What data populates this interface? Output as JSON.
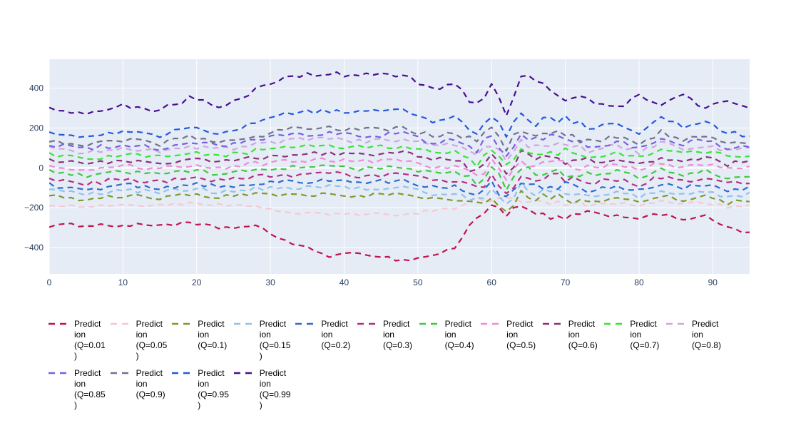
{
  "page": {
    "background": "#ffffff"
  },
  "plot": {
    "bg_color": "#e5ecf6",
    "grid_color": "#ffffff",
    "tick_color": "#2a3f5f",
    "legend_text_color": "#000000",
    "zeroline_width": 2
  },
  "axes": {
    "x_ticks": [
      0,
      10,
      20,
      30,
      40,
      50,
      60,
      70,
      80,
      90
    ],
    "x_tick_labels": [
      "0",
      "10",
      "20",
      "30",
      "40",
      "50",
      "60",
      "70",
      "80",
      "90"
    ],
    "y_ticks": [
      400,
      200,
      0,
      -200,
      -400
    ],
    "y_tick_labels": [
      "400",
      "200",
      "0",
      "−200",
      "−400"
    ],
    "x_range": [
      0,
      95
    ],
    "y_range": [
      -532,
      545
    ],
    "grid": "on",
    "legend_position": "bottom"
  },
  "chart_data": {
    "type": "line",
    "line_style": "dashed",
    "x_anchors": [
      0,
      5,
      10,
      15,
      19,
      23,
      28,
      33,
      38,
      43,
      48,
      52,
      55,
      58,
      60,
      62,
      64,
      66,
      68,
      71,
      74,
      77,
      80,
      83,
      86,
      89,
      92,
      95
    ],
    "volatile_zone": {
      "x_start": 57,
      "x_end": 73,
      "jitter_factor": 2.0
    },
    "series": [
      {
        "name": "Prediction (Q=0.01)",
        "q": 0.01,
        "color": "#c2134e",
        "jitter": 9,
        "legend_lines": [
          "Predict",
          "ion",
          "(Q=0.01",
          ")"
        ],
        "values": [
          -290,
          -285,
          -290,
          -285,
          -280,
          -300,
          -295,
          -380,
          -440,
          -430,
          -465,
          -440,
          -400,
          -250,
          -180,
          -230,
          -200,
          -230,
          -260,
          -240,
          -230,
          -240,
          -250,
          -235,
          -255,
          -245,
          -300,
          -330
        ]
      },
      {
        "name": "Prediction (Q=0.05)",
        "q": 0.05,
        "color": "#f8c7d2",
        "jitter": 7,
        "legend_lines": [
          "Predict",
          "ion",
          "(Q=0.05",
          ")"
        ],
        "values": [
          -185,
          -195,
          -185,
          -190,
          -180,
          -185,
          -195,
          -225,
          -235,
          -230,
          -235,
          -215,
          -200,
          -160,
          -175,
          -150,
          -165,
          -175,
          -170,
          -180,
          -185,
          -175,
          -190,
          -170,
          -180,
          -175,
          -195,
          -185
        ]
      },
      {
        "name": "Prediction (Q=0.1)",
        "q": 0.1,
        "color": "#7d9b2c",
        "jitter": 11,
        "legend_lines": [
          "Predict",
          "ion",
          "(Q=0.1)"
        ],
        "values": [
          -140,
          -160,
          -140,
          -150,
          -135,
          -145,
          -135,
          -135,
          -130,
          -140,
          -130,
          -160,
          -155,
          -190,
          -135,
          -210,
          -125,
          -155,
          -140,
          -160,
          -165,
          -150,
          -175,
          -140,
          -160,
          -145,
          -175,
          -160
        ]
      },
      {
        "name": "Prediction (Q=0.15)",
        "q": 0.15,
        "color": "#8fc2ec",
        "jitter": 11,
        "legend_lines": [
          "Predict",
          "ion",
          "(Q=0.15",
          ")"
        ],
        "values": [
          -110,
          -135,
          -110,
          -125,
          -105,
          -120,
          -105,
          -100,
          -95,
          -105,
          -95,
          -130,
          -125,
          -165,
          -105,
          -185,
          -95,
          -125,
          -110,
          -130,
          -135,
          -120,
          -145,
          -110,
          -130,
          -115,
          -145,
          -130
        ]
      },
      {
        "name": "Prediction (Q=0.2)",
        "q": 0.2,
        "color": "#2e6ad2",
        "jitter": 12,
        "legend_lines": [
          "Predict",
          "ion",
          "(Q=0.2)"
        ],
        "values": [
          -85,
          -110,
          -85,
          -100,
          -80,
          -95,
          -75,
          -70,
          -65,
          -75,
          -65,
          -100,
          -95,
          -140,
          -75,
          -160,
          -65,
          -95,
          -80,
          -100,
          -105,
          -90,
          -115,
          -80,
          -100,
          -85,
          -115,
          -100
        ]
      },
      {
        "name": "Prediction (Q=0.3)",
        "q": 0.3,
        "color": "#b52e80",
        "jitter": 12,
        "legend_lines": [
          "Predict",
          "ion",
          "(Q=0.3)"
        ],
        "values": [
          -55,
          -80,
          -55,
          -70,
          -50,
          -65,
          -45,
          -35,
          -30,
          -40,
          -30,
          -65,
          -60,
          -110,
          -40,
          -130,
          -30,
          -60,
          -45,
          -65,
          -70,
          -55,
          -85,
          -45,
          -65,
          -50,
          -80,
          -70
        ]
      },
      {
        "name": "Prediction (Q=0.4)",
        "q": 0.4,
        "color": "#3fc93f",
        "jitter": 12,
        "legend_lines": [
          "Predict",
          "ion",
          "(Q=0.4)"
        ],
        "values": [
          -20,
          -45,
          -20,
          -35,
          -15,
          -30,
          -10,
          0,
          5,
          -5,
          5,
          -30,
          -25,
          -75,
          -5,
          -95,
          5,
          -25,
          -10,
          -30,
          -35,
          -20,
          -50,
          -10,
          -30,
          -15,
          -45,
          -35
        ]
      },
      {
        "name": "Prediction (Q=0.5)",
        "q": 0.5,
        "color": "#f18ad8",
        "jitter": 12,
        "legend_lines": [
          "Predict",
          "ion",
          "(Q=0.5)"
        ],
        "values": [
          10,
          -15,
          10,
          -5,
          15,
          0,
          20,
          35,
          40,
          30,
          40,
          5,
          10,
          -45,
          30,
          -65,
          40,
          10,
          25,
          5,
          0,
          15,
          -15,
          25,
          5,
          20,
          -10,
          0
        ]
      },
      {
        "name": "Prediction (Q=0.6)",
        "q": 0.6,
        "color": "#8c3177",
        "jitter": 12,
        "legend_lines": [
          "Predict",
          "ion",
          "(Q=0.6)"
        ],
        "values": [
          40,
          15,
          40,
          25,
          45,
          30,
          50,
          70,
          75,
          65,
          75,
          40,
          45,
          -15,
          60,
          -35,
          70,
          40,
          55,
          35,
          30,
          45,
          15,
          55,
          35,
          50,
          20,
          30
        ]
      },
      {
        "name": "Prediction (Q=0.7)",
        "q": 0.7,
        "color": "#37e437",
        "jitter": 12,
        "legend_lines": [
          "Predict",
          "ion",
          "(Q=0.7)"
        ],
        "values": [
          70,
          45,
          70,
          55,
          80,
          60,
          85,
          105,
          110,
          100,
          110,
          75,
          80,
          20,
          100,
          0,
          110,
          75,
          90,
          70,
          60,
          80,
          50,
          90,
          70,
          85,
          55,
          60
        ]
      },
      {
        "name": "Prediction (Q=0.8)",
        "q": 0.8,
        "color": "#cfa6de",
        "jitter": 12,
        "legend_lines": [
          "Predict",
          "ion",
          "(Q=0.8)"
        ],
        "values": [
          100,
          75,
          100,
          85,
          110,
          90,
          115,
          140,
          145,
          135,
          145,
          110,
          115,
          60,
          130,
          40,
          140,
          110,
          120,
          100,
          90,
          110,
          80,
          120,
          100,
          115,
          85,
          90
        ]
      },
      {
        "name": "Prediction (Q=0.85)",
        "q": 0.85,
        "color": "#7b5ee2",
        "jitter": 12,
        "legend_lines": [
          "Predict",
          "ion",
          "(Q=0.85",
          ")"
        ],
        "values": [
          120,
          95,
          120,
          100,
          130,
          110,
          140,
          165,
          170,
          160,
          170,
          130,
          140,
          90,
          160,
          70,
          170,
          130,
          150,
          120,
          110,
          130,
          100,
          150,
          120,
          140,
          100,
          110
        ]
      },
      {
        "name": "Prediction (Q=0.9)",
        "q": 0.9,
        "color": "#717389",
        "jitter": 12,
        "legend_lines": [
          "Predict",
          "ion",
          "(Q=0.9)"
        ],
        "values": [
          140,
          115,
          140,
          120,
          155,
          130,
          160,
          195,
          200,
          190,
          195,
          160,
          170,
          120,
          190,
          100,
          200,
          160,
          170,
          150,
          130,
          160,
          120,
          180,
          140,
          160,
          120,
          130
        ]
      },
      {
        "name": "Prediction (Q=0.95)",
        "q": 0.95,
        "color": "#2459dd",
        "jitter": 12,
        "legend_lines": [
          "Predict",
          "ion",
          "(Q=0.95",
          ")"
        ],
        "values": [
          180,
          155,
          180,
          160,
          200,
          170,
          230,
          280,
          285,
          280,
          285,
          230,
          260,
          180,
          270,
          170,
          280,
          230,
          260,
          230,
          200,
          230,
          180,
          260,
          200,
          230,
          180,
          150
        ]
      },
      {
        "name": "Prediction (Q=0.99)",
        "q": 0.99,
        "color": "#4a0d91",
        "jitter": 13,
        "legend_lines": [
          "Predict",
          "ion",
          "(Q=0.99",
          ")"
        ],
        "values": [
          300,
          260,
          310,
          290,
          350,
          310,
          390,
          460,
          470,
          465,
          470,
          390,
          430,
          300,
          420,
          280,
          470,
          420,
          380,
          340,
          330,
          300,
          360,
          310,
          370,
          300,
          330,
          295
        ]
      }
    ]
  }
}
